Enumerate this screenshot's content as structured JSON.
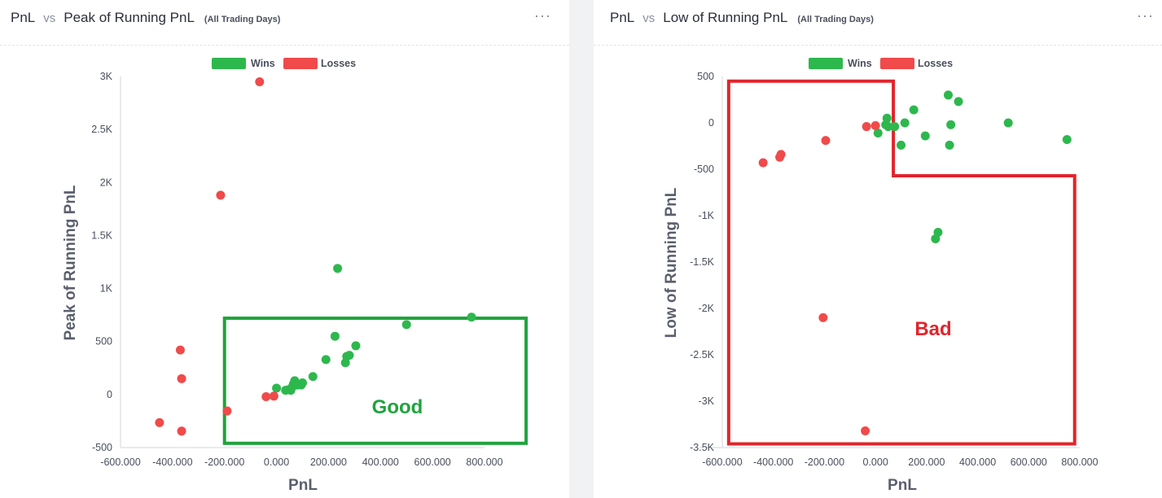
{
  "colors": {
    "wins": "#2db84d",
    "losses": "#f04a4a",
    "good_box": "#1fa33d",
    "bad_box": "#e2242b"
  },
  "panels": [
    {
      "title": "PnL",
      "vs": "vs",
      "metric": "Peak of Running PnL",
      "subtitle": "(All Trading Days)",
      "menu": "···"
    },
    {
      "title": "PnL",
      "vs": "vs",
      "metric": "Low of Running PnL",
      "subtitle": "(All Trading Days)",
      "menu": "···"
    }
  ],
  "chart_data": [
    {
      "type": "scatter",
      "xlabel": "PnL",
      "ylabel": "Peak of Running PnL",
      "xlim": [
        -600,
        800
      ],
      "ylim": [
        -500,
        3000
      ],
      "xticks": [
        -600,
        -400,
        -200,
        0,
        200,
        400,
        600,
        800
      ],
      "xtick_labels": [
        "-600.000",
        "-400.000",
        "-200.000",
        "0.000",
        "200.000",
        "400.000",
        "600.000",
        "800.000"
      ],
      "yticks": [
        -500,
        0,
        500,
        1000,
        1500,
        2000,
        2500,
        3000
      ],
      "ytick_labels": [
        "-500",
        "0",
        "500",
        "1K",
        "1.5K",
        "2K",
        "2.5K",
        "3K"
      ],
      "legend": [
        "Wins",
        "Losses"
      ],
      "series": [
        {
          "name": "Wins",
          "points": [
            [
              0,
              60
            ],
            [
              35,
              40
            ],
            [
              45,
              45
            ],
            [
              55,
              40
            ],
            [
              60,
              70
            ],
            [
              65,
              100
            ],
            [
              70,
              130
            ],
            [
              80,
              90
            ],
            [
              95,
              90
            ],
            [
              100,
              110
            ],
            [
              140,
              170
            ],
            [
              190,
              330
            ],
            [
              225,
              550
            ],
            [
              235,
              1190
            ],
            [
              265,
              300
            ],
            [
              270,
              360
            ],
            [
              280,
              370
            ],
            [
              305,
              460
            ],
            [
              500,
              660
            ],
            [
              750,
              730
            ]
          ]
        },
        {
          "name": "Losses",
          "points": [
            [
              -65,
              2950
            ],
            [
              -215,
              1880
            ],
            [
              -370,
              420
            ],
            [
              -365,
              150
            ],
            [
              -450,
              -265
            ],
            [
              -365,
              -345
            ],
            [
              -190,
              -155
            ],
            [
              -40,
              -20
            ],
            [
              -10,
              -15
            ]
          ]
        }
      ],
      "annotation": {
        "label": "Good",
        "region": {
          "x": [
            -200,
            960
          ],
          "y": [
            -460,
            720
          ]
        }
      }
    },
    {
      "type": "scatter",
      "xlabel": "PnL",
      "ylabel": "Low of Running PnL",
      "xlim": [
        -600,
        800
      ],
      "ylim": [
        -3500,
        500
      ],
      "xticks": [
        -600,
        -400,
        -200,
        0,
        200,
        400,
        600,
        800
      ],
      "xtick_labels": [
        "-600.000",
        "-400.000",
        "-200.000",
        "0.000",
        "200.000",
        "400.000",
        "600.000",
        "800.000"
      ],
      "yticks": [
        -3500,
        -3000,
        -2500,
        -2000,
        -1500,
        -1000,
        -500,
        0,
        500
      ],
      "ytick_labels": [
        "-3.5K",
        "-3K",
        "-2.5K",
        "-2K",
        "-1.5K",
        "-1K",
        "-500",
        "0",
        "500"
      ],
      "legend": [
        "Wins",
        "Losses"
      ],
      "series": [
        {
          "name": "Wins",
          "points": [
            [
              40,
              -20
            ],
            [
              45,
              50
            ],
            [
              50,
              -40
            ],
            [
              75,
              -40
            ],
            [
              10,
              -110
            ],
            [
              100,
              -240
            ],
            [
              115,
              0
            ],
            [
              150,
              140
            ],
            [
              195,
              -140
            ],
            [
              235,
              -1250
            ],
            [
              245,
              -1180
            ],
            [
              285,
              300
            ],
            [
              290,
              -240
            ],
            [
              295,
              -20
            ],
            [
              325,
              230
            ],
            [
              520,
              0
            ],
            [
              750,
              -180
            ]
          ]
        },
        {
          "name": "Losses",
          "points": [
            [
              -440,
              -430
            ],
            [
              -370,
              -340
            ],
            [
              -375,
              -370
            ],
            [
              -195,
              -190
            ],
            [
              -205,
              -2100
            ],
            [
              -40,
              -3320
            ],
            [
              -35,
              -40
            ],
            [
              0,
              -30
            ]
          ]
        }
      ],
      "annotation": {
        "label": "Bad",
        "region_outline": [
          [
            -575,
            450
          ],
          [
            70,
            450
          ],
          [
            70,
            -570
          ],
          [
            780,
            -570
          ],
          [
            780,
            -3460
          ],
          [
            -575,
            -3460
          ]
        ]
      }
    }
  ]
}
